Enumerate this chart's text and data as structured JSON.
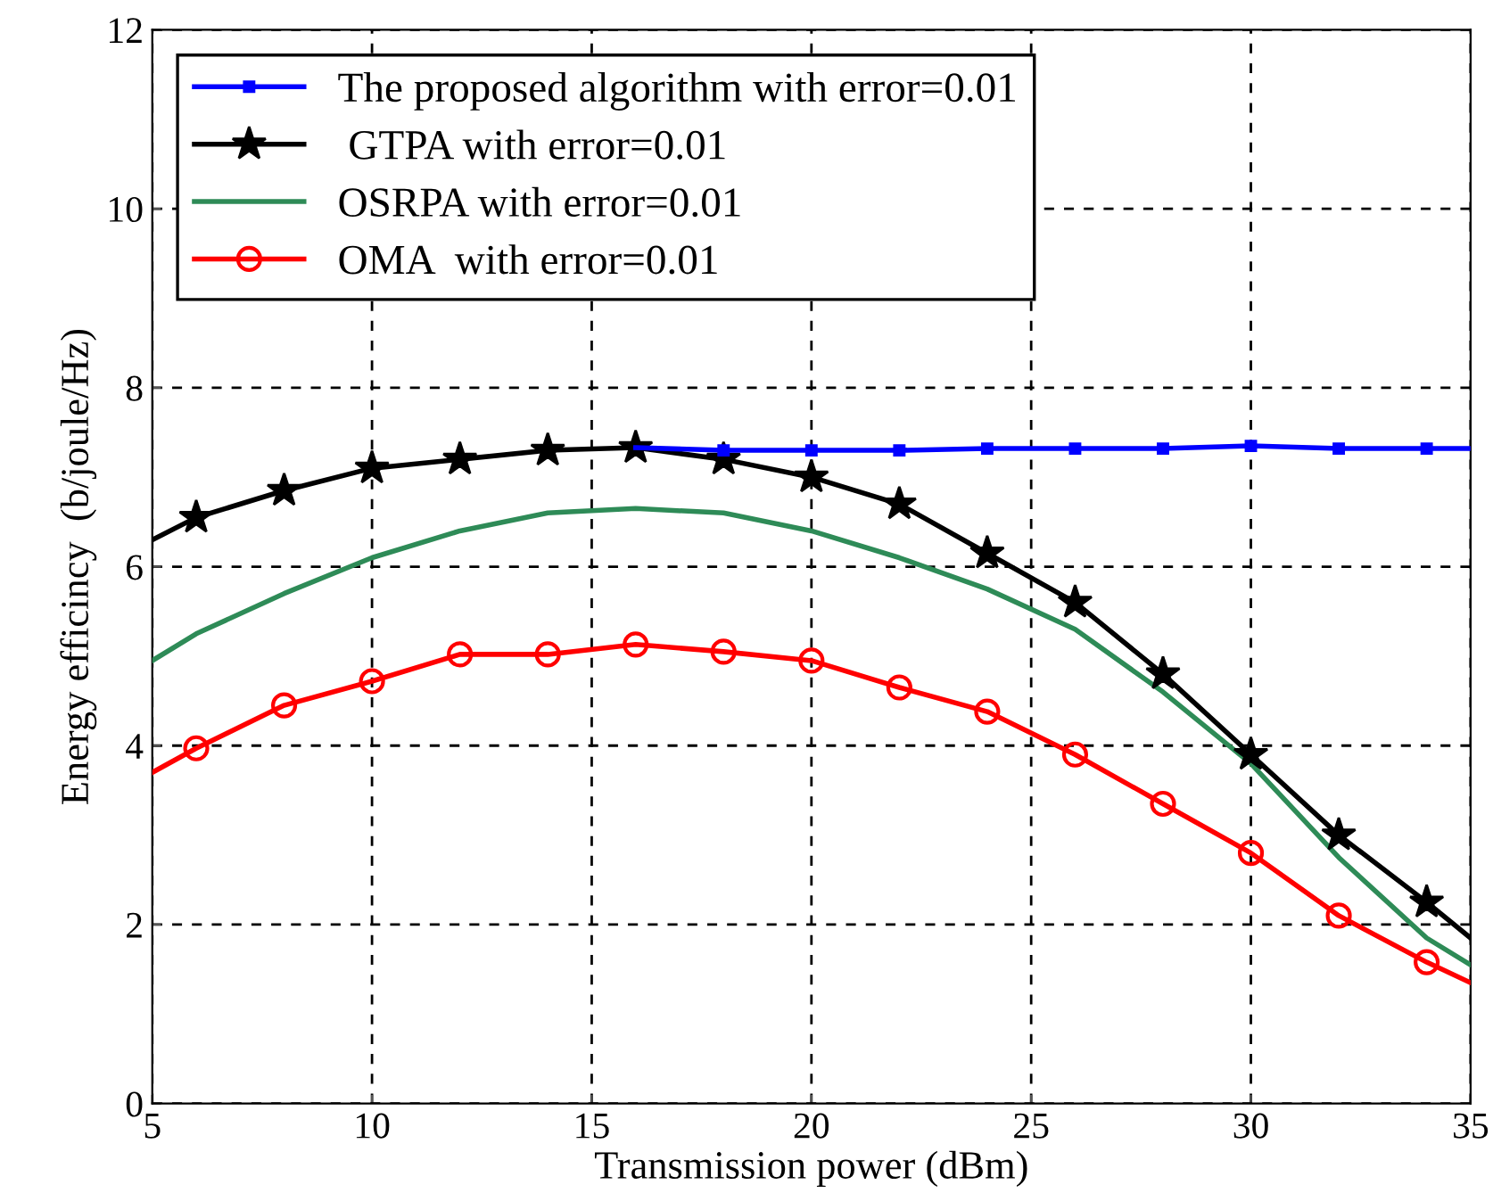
{
  "chart_data": {
    "type": "line",
    "xlabel": "Transmission power (dBm)",
    "ylabel": "Energy efficincy  (b/joule/Hz)",
    "xlim": [
      5,
      35
    ],
    "xticks": [
      5,
      10,
      15,
      20,
      25,
      30,
      35
    ],
    "ylim": [
      0,
      12
    ],
    "yticks": [
      0,
      2,
      4,
      6,
      8,
      10,
      12
    ],
    "grid": true,
    "legend": "top left",
    "series": [
      {
        "name": "The proposed algorithm with error=0.01",
        "color": "#0000ff",
        "marker": "square",
        "x": [
          16,
          18,
          20,
          22,
          24,
          26,
          28,
          30,
          32,
          34,
          35
        ],
        "values": [
          7.33,
          7.3,
          7.3,
          7.3,
          7.32,
          7.32,
          7.32,
          7.35,
          7.32,
          7.32,
          7.32
        ]
      },
      {
        "name": " GTPA with error=0.01",
        "color": "#000000",
        "marker": "star",
        "x": [
          5,
          6,
          8,
          10,
          12,
          14,
          16,
          18,
          20,
          22,
          24,
          26,
          28,
          30,
          32,
          34,
          35
        ],
        "values": [
          6.3,
          6.55,
          6.85,
          7.1,
          7.2,
          7.3,
          7.33,
          7.2,
          7.0,
          6.7,
          6.15,
          5.6,
          4.8,
          3.9,
          3.0,
          2.25,
          1.85
        ]
      },
      {
        "name": "OSRPA with error=0.01",
        "color": "#2e8b57",
        "marker": "none",
        "x": [
          5,
          6,
          8,
          10,
          12,
          14,
          16,
          18,
          20,
          22,
          24,
          26,
          28,
          30,
          32,
          34,
          35
        ],
        "values": [
          4.95,
          5.25,
          5.7,
          6.1,
          6.4,
          6.6,
          6.65,
          6.6,
          6.4,
          6.1,
          5.75,
          5.3,
          4.6,
          3.8,
          2.75,
          1.85,
          1.55
        ]
      },
      {
        "name": "OMA  with error=0.01",
        "color": "#ff0000",
        "marker": "circle",
        "x": [
          5,
          6,
          8,
          10,
          12,
          14,
          16,
          18,
          20,
          22,
          24,
          26,
          28,
          30,
          32,
          34,
          35
        ],
        "values": [
          3.7,
          3.97,
          4.45,
          4.72,
          5.02,
          5.02,
          5.13,
          5.05,
          4.95,
          4.65,
          4.38,
          3.9,
          3.35,
          2.8,
          2.1,
          1.58,
          1.35
        ]
      }
    ]
  }
}
